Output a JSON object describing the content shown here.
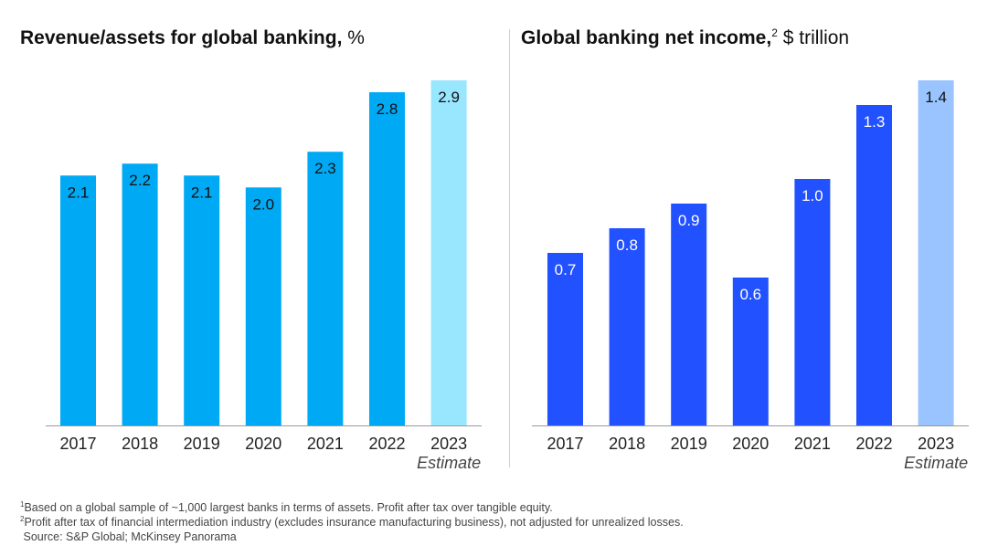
{
  "charts": {
    "left": {
      "title": "Revenue/assets for global banking,",
      "title_sup": "",
      "unit": " %"
    },
    "right": {
      "title": "Global banking net income,",
      "title_sup": "2",
      "unit": " $ trillion"
    }
  },
  "chart_data": [
    {
      "type": "bar",
      "title": "Revenue/assets for global banking, %",
      "categories": [
        "2017",
        "2018",
        "2019",
        "2020",
        "2021",
        "2022",
        "2023"
      ],
      "values": [
        2.1,
        2.2,
        2.1,
        2.0,
        2.3,
        2.8,
        2.9
      ],
      "value_labels": [
        "2.1",
        "2.2",
        "2.1",
        "2.0",
        "2.3",
        "2.8",
        "2.9"
      ],
      "estimate_category": "2023",
      "estimate_label": "Estimate",
      "colors": {
        "actual": "#00a9f4",
        "estimate": "#99e6ff",
        "label": "#111111"
      },
      "ylim": [
        0,
        2.9
      ]
    },
    {
      "type": "bar",
      "title": "Global banking net income, $ trillion",
      "categories": [
        "2017",
        "2018",
        "2019",
        "2020",
        "2021",
        "2022",
        "2023"
      ],
      "values": [
        0.7,
        0.8,
        0.9,
        0.6,
        1.0,
        1.3,
        1.4
      ],
      "value_labels": [
        "0.7",
        "0.8",
        "0.9",
        "0.6",
        "1.0",
        "1.3",
        "1.4"
      ],
      "estimate_category": "2023",
      "estimate_label": "Estimate",
      "colors": {
        "actual": "#2251ff",
        "estimate": "#99c4ff",
        "label": "#ffffff"
      },
      "ylim": [
        0,
        1.4
      ]
    }
  ],
  "footnotes": {
    "note1_mark": "1",
    "note1": "Based on a global sample of ~1,000 largest banks in terms of assets. Profit after tax over tangible equity.",
    "note2_mark": "2",
    "note2": "Profit after tax of financial intermediation industry (excludes insurance manufacturing business), not adjusted for unrealized losses.",
    "source": "Source: S&P Global; McKinsey Panorama"
  }
}
